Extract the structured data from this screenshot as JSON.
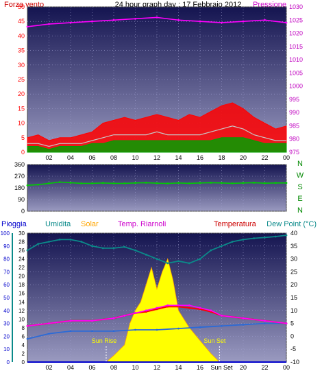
{
  "header": {
    "left_label": "Forza vento",
    "title": "24 hour graph day : 17 Febbraio 2012",
    "right_label": "Pressione"
  },
  "colors": {
    "bg_top": "#1a1a55",
    "bg_bottom": "#8a8ab0",
    "wind_gust": "#ff0000",
    "wind_avg": "#00a000",
    "wind_mix": "#c8c8c8",
    "pressure": "#ff00ff",
    "direction": "#00cc00",
    "humidity": "#0b8a8a",
    "solar": "#ffff00",
    "solar_edge": "#ffa500",
    "heat_index": "#ff00ff",
    "temperature": "#ff0000",
    "dew_point": "#2a6ad8",
    "rain": "#0000cc",
    "left_axis": "#ff0000",
    "right_axis": "#c000c0",
    "axis_text": "#000000"
  },
  "chart_data": [
    {
      "id": "wind-pressure",
      "type": "line",
      "x_ticks": [
        "02",
        "04",
        "06",
        "08",
        "10",
        "12",
        "14",
        "16",
        "18",
        "20",
        "22",
        "00"
      ],
      "left_axis": {
        "ticks": [
          0,
          5,
          10,
          15,
          20,
          25,
          30,
          35,
          40,
          45,
          50
        ],
        "ylim": [
          0,
          50
        ]
      },
      "right_axis": {
        "ticks": [
          975,
          980,
          985,
          990,
          995,
          1000,
          1005,
          1010,
          1015,
          1020,
          1025,
          1030
        ],
        "ylim": [
          975,
          1030
        ]
      },
      "series": [
        {
          "name": "Pressione",
          "axis": "right",
          "x": [
            0,
            2,
            4,
            6,
            8,
            10,
            12,
            14,
            16,
            18,
            20,
            22,
            24
          ],
          "values": [
            1022.5,
            1023.5,
            1024.0,
            1024.5,
            1025.0,
            1025.5,
            1026.0,
            1025.0,
            1024.5,
            1024.0,
            1024.5,
            1025.0,
            1024.0
          ]
        },
        {
          "name": "gust",
          "axis": "left",
          "x": [
            0,
            1,
            2,
            3,
            4,
            5,
            6,
            7,
            8,
            9,
            10,
            11,
            12,
            13,
            14,
            15,
            16,
            17,
            18,
            19,
            20,
            21,
            22,
            23,
            24
          ],
          "values": [
            5,
            6,
            4,
            5,
            5,
            6,
            7,
            10,
            11,
            12,
            11,
            12,
            13,
            12,
            11,
            13,
            12,
            14,
            16,
            17,
            15,
            12,
            10,
            8,
            9
          ]
        },
        {
          "name": "mix",
          "axis": "left",
          "x": [
            0,
            1,
            2,
            3,
            4,
            5,
            6,
            7,
            8,
            9,
            10,
            11,
            12,
            13,
            14,
            15,
            16,
            17,
            18,
            19,
            20,
            21,
            22,
            23,
            24
          ],
          "values": [
            3,
            3,
            2,
            3,
            3,
            3,
            4,
            5,
            6,
            6,
            6,
            6,
            7,
            6,
            6,
            6,
            6,
            7,
            8,
            9,
            8,
            6,
            5,
            4,
            4
          ]
        },
        {
          "name": "avg",
          "axis": "left",
          "x": [
            0,
            1,
            2,
            3,
            4,
            5,
            6,
            7,
            8,
            9,
            10,
            11,
            12,
            13,
            14,
            15,
            16,
            17,
            18,
            19,
            20,
            21,
            22,
            23,
            24
          ],
          "values": [
            2,
            2,
            1,
            2,
            2,
            2,
            3,
            3,
            4,
            4,
            4,
            4,
            4,
            4,
            4,
            4,
            4,
            4,
            5,
            5,
            5,
            4,
            3,
            3,
            3
          ]
        }
      ]
    },
    {
      "id": "wind-direction",
      "type": "line",
      "left_axis": {
        "ticks": [
          0,
          90,
          180,
          270,
          360
        ],
        "ylim": [
          0,
          360
        ]
      },
      "compass": [
        "N",
        "W",
        "S",
        "E",
        "N"
      ],
      "series": [
        {
          "name": "direction",
          "x": [
            0,
            1,
            2,
            3,
            4,
            5,
            6,
            7,
            8,
            9,
            10,
            11,
            12,
            13,
            14,
            15,
            16,
            17,
            18,
            19,
            20,
            21,
            22,
            23,
            24
          ],
          "values": [
            200,
            205,
            215,
            225,
            220,
            215,
            215,
            218,
            215,
            215,
            218,
            220,
            216,
            214,
            218,
            215,
            218,
            220,
            218,
            215,
            218,
            220,
            216,
            218,
            218
          ]
        }
      ]
    },
    {
      "id": "temperature",
      "type": "line",
      "labels": {
        "rain": "Pioggia",
        "humidity": "Umidita",
        "solar": "Solar",
        "heat_index": "Temp. Riarnoli",
        "temperature": "Temperatura",
        "dew_point": "Dew Point (°C)",
        "sunrise": "Sun Rise",
        "sunset": "Sun Set"
      },
      "x_ticks": [
        "02",
        "04",
        "06",
        "08",
        "10",
        "12",
        "14",
        "16",
        "Sun Set",
        "20",
        "22",
        "00"
      ],
      "axis_rain": {
        "ticks": [
          0,
          10,
          20,
          30,
          40,
          50,
          60,
          70,
          80,
          90,
          100
        ],
        "ylim": [
          0,
          100
        ]
      },
      "axis_humidity": {
        "ticks": [
          0,
          2,
          4,
          6,
          8,
          10,
          12,
          14,
          16,
          18,
          20,
          22,
          24,
          26,
          28,
          30
        ],
        "ylim": [
          0,
          30
        ]
      },
      "axis_temp": {
        "ticks": [
          -10,
          -5,
          0,
          5,
          10,
          15,
          20,
          25,
          30,
          35,
          40
        ],
        "ylim": [
          -10,
          40
        ]
      },
      "sunrise_hour": 7.3,
      "sunset_hour": 17.8,
      "series": [
        {
          "name": "Umidita",
          "axis": "humidity",
          "x": [
            0,
            1,
            2,
            3,
            4,
            5,
            6,
            7,
            8,
            9,
            10,
            11,
            12,
            13,
            14,
            15,
            16,
            17,
            18,
            19,
            20,
            21,
            22,
            23,
            24
          ],
          "values": [
            26,
            27.5,
            28,
            28.5,
            28.5,
            28,
            27,
            26.5,
            26.5,
            26.8,
            26,
            25,
            24,
            23,
            23.5,
            23,
            24,
            26,
            27,
            28,
            28.5,
            28.8,
            29,
            29.2,
            29.5
          ]
        },
        {
          "name": "Temp. Riarnoli",
          "axis": "temp",
          "x": [
            0,
            2,
            4,
            6,
            8,
            9,
            10,
            11,
            12,
            13,
            14,
            15,
            16,
            17,
            18,
            20,
            22,
            24
          ],
          "values": [
            4,
            5,
            6,
            6,
            7,
            8,
            9,
            10,
            11,
            12,
            12,
            12,
            11,
            10,
            8,
            7,
            6,
            5
          ]
        },
        {
          "name": "Temperatura",
          "axis": "temp",
          "x": [
            0,
            2,
            4,
            6,
            8,
            9,
            10,
            11,
            12,
            13,
            14,
            15,
            16,
            17,
            18,
            20,
            22,
            24
          ],
          "values": [
            4,
            5,
            6,
            6,
            7,
            8,
            9,
            9.5,
            10.5,
            11.5,
            11.5,
            11,
            10.5,
            9.5,
            8,
            7,
            6,
            5
          ]
        },
        {
          "name": "Dew Point (°C)",
          "axis": "temp",
          "x": [
            0,
            2,
            4,
            6,
            8,
            10,
            12,
            14,
            16,
            18,
            20,
            22,
            24
          ],
          "values": [
            -1,
            1,
            2,
            2,
            2,
            2.5,
            2.5,
            3,
            3.5,
            4,
            4.5,
            5,
            5
          ]
        },
        {
          "name": "Solar",
          "axis": "humidity",
          "x": [
            7.3,
            8,
            9,
            9.5,
            10,
            10.5,
            11,
            11.5,
            12,
            12.5,
            13,
            13.5,
            14,
            15,
            16,
            17,
            17.8
          ],
          "values": [
            0,
            1.5,
            4,
            9,
            12,
            14,
            18,
            22,
            17,
            21,
            24,
            19,
            12,
            8,
            5,
            2,
            0
          ]
        },
        {
          "name": "Pioggia",
          "axis": "rain",
          "x": [
            0,
            24
          ],
          "values": [
            0,
            0
          ]
        }
      ]
    }
  ]
}
